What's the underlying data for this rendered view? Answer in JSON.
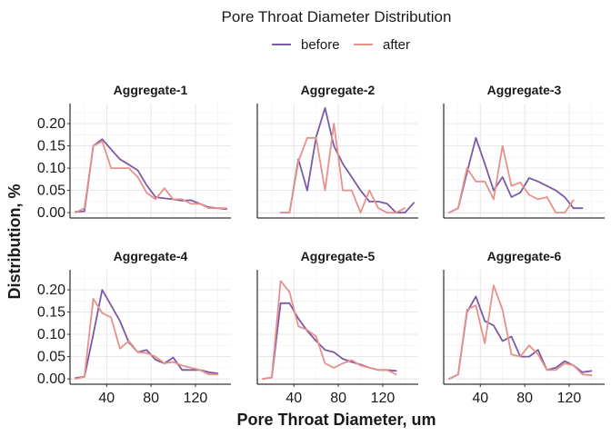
{
  "chart_data": {
    "type": "line",
    "title": "Pore Throat Diameter Distribution",
    "xlabel": "Pore Throat Diameter, um",
    "ylabel": "Distribution, %",
    "xlim": [
      7,
      152
    ],
    "ylim": [
      -0.012,
      0.245
    ],
    "xticks": [
      40,
      80,
      120
    ],
    "yticks": [
      0.0,
      0.05,
      0.1,
      0.15,
      0.2
    ],
    "ytick_labels": [
      "0.00",
      "0.05",
      "0.10",
      "0.15",
      "0.20"
    ],
    "grid": true,
    "legend_position": "top",
    "series_names": [
      "before",
      "after"
    ],
    "series_colors": [
      "#7b5aa6",
      "#e8908a"
    ],
    "x": [
      12,
      20,
      28,
      36,
      44,
      52,
      60,
      68,
      76,
      84,
      92,
      100,
      108,
      116,
      124,
      132,
      140,
      148
    ],
    "panels": [
      {
        "label": "Aggregate-1",
        "series": [
          {
            "name": "before",
            "values": [
              0.002,
              0.003,
              0.15,
              0.165,
              0.142,
              0.12,
              0.108,
              0.095,
              0.062,
              0.035,
              0.032,
              0.03,
              0.027,
              0.028,
              0.02,
              0.012,
              0.01,
              0.008
            ]
          },
          {
            "name": "after",
            "values": [
              0.0,
              0.01,
              0.15,
              0.16,
              0.1,
              0.1,
              0.1,
              0.08,
              0.045,
              0.03,
              0.055,
              0.03,
              0.03,
              0.02,
              0.02,
              0.01,
              0.01,
              0.01
            ]
          }
        ]
      },
      {
        "label": "Aggregate-2",
        "series": [
          {
            "name": "before",
            "values": [
              null,
              null,
              0.0,
              0.0,
              0.12,
              0.05,
              0.17,
              0.235,
              0.15,
              0.11,
              0.08,
              0.05,
              0.025,
              0.025,
              0.02,
              0.0,
              0.0,
              0.022
            ]
          },
          {
            "name": "after",
            "values": [
              null,
              null,
              0.0,
              0.0,
              0.115,
              0.168,
              0.168,
              0.05,
              0.2,
              0.05,
              0.05,
              0.0,
              0.05,
              0.01,
              0.0,
              0.0,
              0.01,
              null
            ]
          }
        ]
      },
      {
        "label": "Aggregate-3",
        "series": [
          {
            "name": "before",
            "values": [
              0.0,
              0.01,
              0.09,
              0.168,
              0.11,
              0.05,
              0.08,
              0.035,
              0.045,
              0.078,
              0.07,
              0.06,
              0.05,
              0.035,
              0.01,
              0.01,
              null,
              null
            ]
          },
          {
            "name": "after",
            "values": [
              0.0,
              0.01,
              0.1,
              0.07,
              0.07,
              0.03,
              0.15,
              0.06,
              0.068,
              0.04,
              0.03,
              0.035,
              0.0,
              0.0,
              0.028,
              null,
              null,
              null
            ]
          }
        ]
      },
      {
        "label": "Aggregate-4",
        "series": [
          {
            "name": "before",
            "values": [
              0.002,
              0.005,
              0.1,
              0.2,
              0.165,
              0.13,
              0.082,
              0.06,
              0.065,
              0.043,
              0.035,
              0.048,
              0.02,
              0.02,
              0.02,
              0.015,
              0.012,
              null
            ]
          },
          {
            "name": "after",
            "values": [
              0.0,
              0.005,
              0.18,
              0.148,
              0.138,
              0.068,
              0.085,
              0.06,
              0.058,
              0.05,
              0.035,
              0.038,
              0.03,
              0.025,
              0.02,
              0.01,
              0.01,
              null
            ]
          }
        ]
      },
      {
        "label": "Aggregate-5",
        "series": [
          {
            "name": "before",
            "values": [
              0.0,
              0.003,
              0.17,
              0.17,
              0.135,
              0.108,
              0.085,
              0.065,
              0.06,
              0.045,
              0.038,
              0.032,
              0.025,
              0.02,
              0.02,
              0.018,
              null,
              null
            ]
          },
          {
            "name": "after",
            "values": [
              0.0,
              0.003,
              0.22,
              0.195,
              0.118,
              0.11,
              0.095,
              0.035,
              0.025,
              0.035,
              0.042,
              0.03,
              0.025,
              0.02,
              0.02,
              0.01,
              null,
              null
            ]
          }
        ]
      },
      {
        "label": "Aggregate-6",
        "series": [
          {
            "name": "before",
            "values": [
              0.0,
              0.01,
              0.15,
              0.185,
              0.13,
              0.12,
              0.085,
              0.095,
              0.05,
              0.05,
              0.065,
              0.02,
              0.025,
              0.04,
              0.03,
              0.015,
              0.018,
              null
            ]
          },
          {
            "name": "after",
            "values": [
              0.0,
              0.01,
              0.155,
              0.165,
              0.08,
              0.21,
              0.155,
              0.055,
              0.05,
              0.075,
              0.055,
              0.02,
              0.02,
              0.035,
              0.03,
              0.01,
              0.008,
              null
            ]
          }
        ]
      }
    ]
  }
}
